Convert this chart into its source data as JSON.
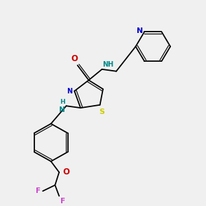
{
  "bg_color": "#f0f0f0",
  "fig_size": [
    3.0,
    3.0
  ],
  "dpi": 100,
  "colors": {
    "bond": "#000000",
    "N": "#0000cc",
    "O": "#cc0000",
    "S": "#cccc00",
    "NH_cyan": "#008888",
    "F": "#cc44cc",
    "bg": "#f0f0f0"
  },
  "lw": 1.3,
  "lw_thin": 0.85
}
